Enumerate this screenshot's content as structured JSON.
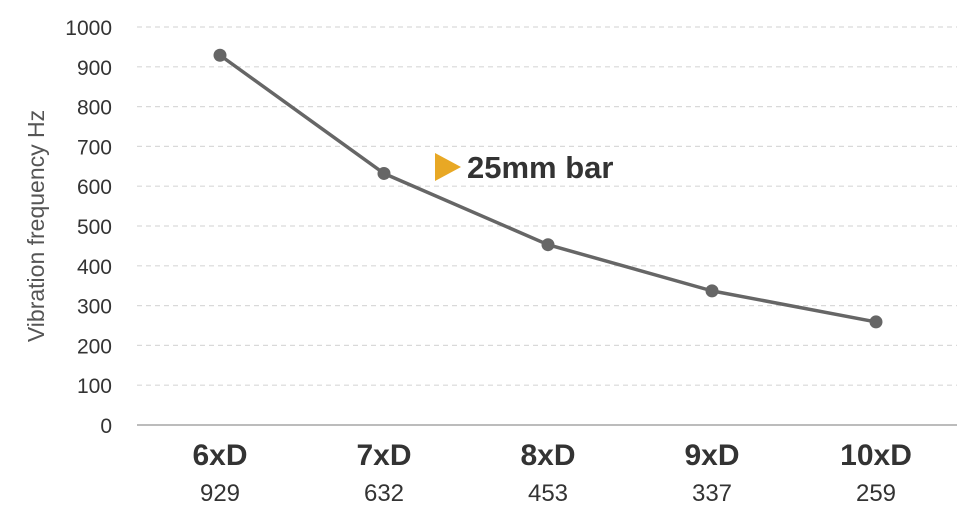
{
  "chart_data": {
    "type": "line",
    "categories": [
      "6xD",
      "7xD",
      "8xD",
      "9xD",
      "10xD"
    ],
    "series": [
      {
        "name": "25mm bar",
        "values": [
          929,
          632,
          453,
          337,
          259
        ]
      }
    ],
    "value_labels": [
      "929",
      "632",
      "453",
      "337",
      "259"
    ],
    "xlabel": "",
    "ylabel": "Vibration frequency Hz",
    "ylim": [
      0,
      1000
    ],
    "yticks": [
      0,
      100,
      200,
      300,
      400,
      500,
      600,
      700,
      800,
      900,
      1000
    ],
    "grid": true,
    "legend_placement": "inside-center",
    "colors": {
      "line": "#666666",
      "marker": "#666666",
      "legend_marker": "#e8a825",
      "grid": "#d9d9d9",
      "axis": "#a6a6a6"
    }
  }
}
